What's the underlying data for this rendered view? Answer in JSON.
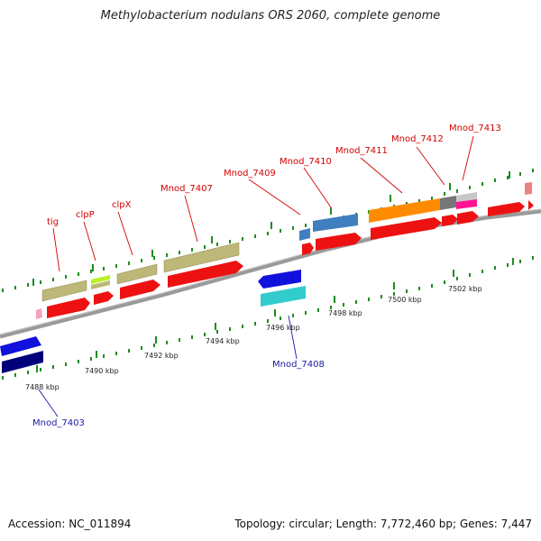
{
  "title": "Methylobacterium nodulans ORS 2060, complete genome",
  "footer": {
    "accession": "Accession: NC_011894",
    "summary": "Topology: circular; Length: 7,772,460 bp; Genes: 7,447"
  },
  "colors": {
    "backbone": "#7a7a7a",
    "ticks": "#1e8c1e",
    "cds_forward": "#ee1111",
    "cds_reverse": "#1111dd",
    "gene_label_forward": "#d40000",
    "gene_label_reverse": "#1a1aa0"
  },
  "kbp_labels": [
    "7488 kbp",
    "7490 kbp",
    "7492 kbp",
    "7494 kbp",
    "7496 kbp",
    "7498 kbp",
    "7500 kbp",
    "7502 kbp"
  ],
  "gene_labels": {
    "tig": "tig",
    "clpP": "clpP",
    "clpX": "clpX",
    "mnod7407": "Mnod_7407",
    "mnod7409": "Mnod_7409",
    "mnod7410": "Mnod_7410",
    "mnod7411": "Mnod_7411",
    "mnod7412": "Mnod_7412",
    "mnod7413": "Mnod_7413",
    "mnod7408": "Mnod_7408",
    "mnod7403": "Mnod_7403"
  }
}
